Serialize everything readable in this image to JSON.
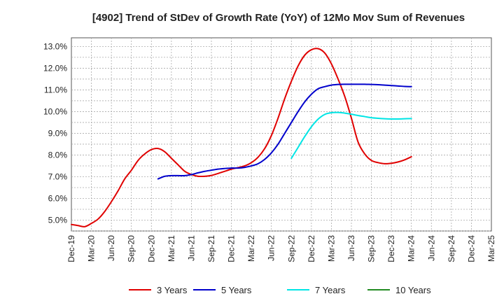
{
  "chart_data": {
    "type": "line",
    "title": "[4902]  Trend of StDev of Growth Rate (YoY) of 12Mo Mov Sum of Revenues",
    "xlabel": "",
    "ylabel": "",
    "ylim": [
      4.5,
      13.4
    ],
    "y_ticks": [
      5.0,
      6.0,
      7.0,
      8.0,
      9.0,
      10.0,
      11.0,
      12.0,
      13.0
    ],
    "y_tick_labels": [
      "5.0%",
      "6.0%",
      "7.0%",
      "8.0%",
      "9.0%",
      "10.0%",
      "11.0%",
      "12.0%",
      "13.0%"
    ],
    "x_tick_labels": [
      "Dec-19",
      "Mar-20",
      "Jun-20",
      "Sep-20",
      "Dec-20",
      "Mar-21",
      "Jun-21",
      "Sep-21",
      "Dec-21",
      "Mar-22",
      "Jun-22",
      "Sep-22",
      "Dec-22",
      "Mar-23",
      "Jun-23",
      "Sep-23",
      "Dec-23",
      "Mar-24",
      "Jun-24",
      "Sep-24",
      "Dec-24",
      "Mar-25"
    ],
    "grid": true,
    "legend_position": "bottom",
    "series": [
      {
        "name": "3 Years",
        "color": "#e00000",
        "points": [
          [
            0,
            4.8
          ],
          [
            1,
            4.75
          ],
          [
            2,
            4.7
          ],
          [
            3,
            4.85
          ],
          [
            4,
            5.05
          ],
          [
            5,
            5.4
          ],
          [
            6,
            5.85
          ],
          [
            7,
            6.35
          ],
          [
            8,
            6.9
          ],
          [
            9,
            7.3
          ],
          [
            10,
            7.75
          ],
          [
            11,
            8.05
          ],
          [
            12,
            8.25
          ],
          [
            13,
            8.3
          ],
          [
            14,
            8.15
          ],
          [
            15,
            7.85
          ],
          [
            16,
            7.55
          ],
          [
            17,
            7.25
          ],
          [
            18,
            7.1
          ],
          [
            19,
            7.02
          ],
          [
            20,
            7.02
          ],
          [
            21,
            7.06
          ],
          [
            22,
            7.15
          ],
          [
            23,
            7.25
          ],
          [
            24,
            7.35
          ],
          [
            25,
            7.42
          ],
          [
            26,
            7.5
          ],
          [
            27,
            7.65
          ],
          [
            28,
            7.9
          ],
          [
            29,
            8.3
          ],
          [
            30,
            8.9
          ],
          [
            31,
            9.7
          ],
          [
            32,
            10.6
          ],
          [
            33,
            11.4
          ],
          [
            34,
            12.1
          ],
          [
            35,
            12.6
          ],
          [
            36,
            12.85
          ],
          [
            37,
            12.9
          ],
          [
            38,
            12.7
          ],
          [
            39,
            12.2
          ],
          [
            40,
            11.5
          ],
          [
            41,
            10.7
          ],
          [
            42,
            9.7
          ],
          [
            43,
            8.6
          ],
          [
            44,
            8.05
          ],
          [
            45,
            7.75
          ],
          [
            46,
            7.65
          ],
          [
            47,
            7.6
          ],
          [
            48,
            7.62
          ],
          [
            49,
            7.68
          ],
          [
            50,
            7.78
          ],
          [
            51,
            7.92
          ]
        ]
      },
      {
        "name": "5 Years",
        "color": "#0000cc",
        "points": [
          [
            13,
            6.9
          ],
          [
            14,
            7.02
          ],
          [
            15,
            7.05
          ],
          [
            16,
            7.05
          ],
          [
            17,
            7.05
          ],
          [
            18,
            7.1
          ],
          [
            19,
            7.18
          ],
          [
            20,
            7.25
          ],
          [
            21,
            7.3
          ],
          [
            22,
            7.35
          ],
          [
            23,
            7.38
          ],
          [
            24,
            7.4
          ],
          [
            25,
            7.4
          ],
          [
            26,
            7.43
          ],
          [
            27,
            7.5
          ],
          [
            28,
            7.6
          ],
          [
            29,
            7.8
          ],
          [
            30,
            8.1
          ],
          [
            31,
            8.5
          ],
          [
            32,
            9.0
          ],
          [
            33,
            9.5
          ],
          [
            34,
            10.0
          ],
          [
            35,
            10.45
          ],
          [
            36,
            10.8
          ],
          [
            37,
            11.05
          ],
          [
            38,
            11.15
          ],
          [
            39,
            11.22
          ],
          [
            40,
            11.25
          ],
          [
            41,
            11.26
          ],
          [
            42,
            11.26
          ],
          [
            43,
            11.26
          ],
          [
            44,
            11.26
          ],
          [
            45,
            11.25
          ],
          [
            46,
            11.24
          ],
          [
            47,
            11.22
          ],
          [
            48,
            11.2
          ],
          [
            49,
            11.18
          ],
          [
            50,
            11.16
          ],
          [
            51,
            11.15
          ]
        ]
      },
      {
        "name": "7 Years",
        "color": "#00e5e5",
        "points": [
          [
            33,
            7.85
          ],
          [
            34,
            8.35
          ],
          [
            35,
            8.85
          ],
          [
            36,
            9.3
          ],
          [
            37,
            9.65
          ],
          [
            38,
            9.87
          ],
          [
            39,
            9.95
          ],
          [
            40,
            9.96
          ],
          [
            41,
            9.93
          ],
          [
            42,
            9.88
          ],
          [
            43,
            9.82
          ],
          [
            44,
            9.77
          ],
          [
            45,
            9.72
          ],
          [
            46,
            9.69
          ],
          [
            47,
            9.67
          ],
          [
            48,
            9.66
          ],
          [
            49,
            9.66
          ],
          [
            50,
            9.67
          ],
          [
            51,
            9.68
          ]
        ]
      },
      {
        "name": "10 Years",
        "color": "#228b22",
        "points": []
      }
    ]
  }
}
